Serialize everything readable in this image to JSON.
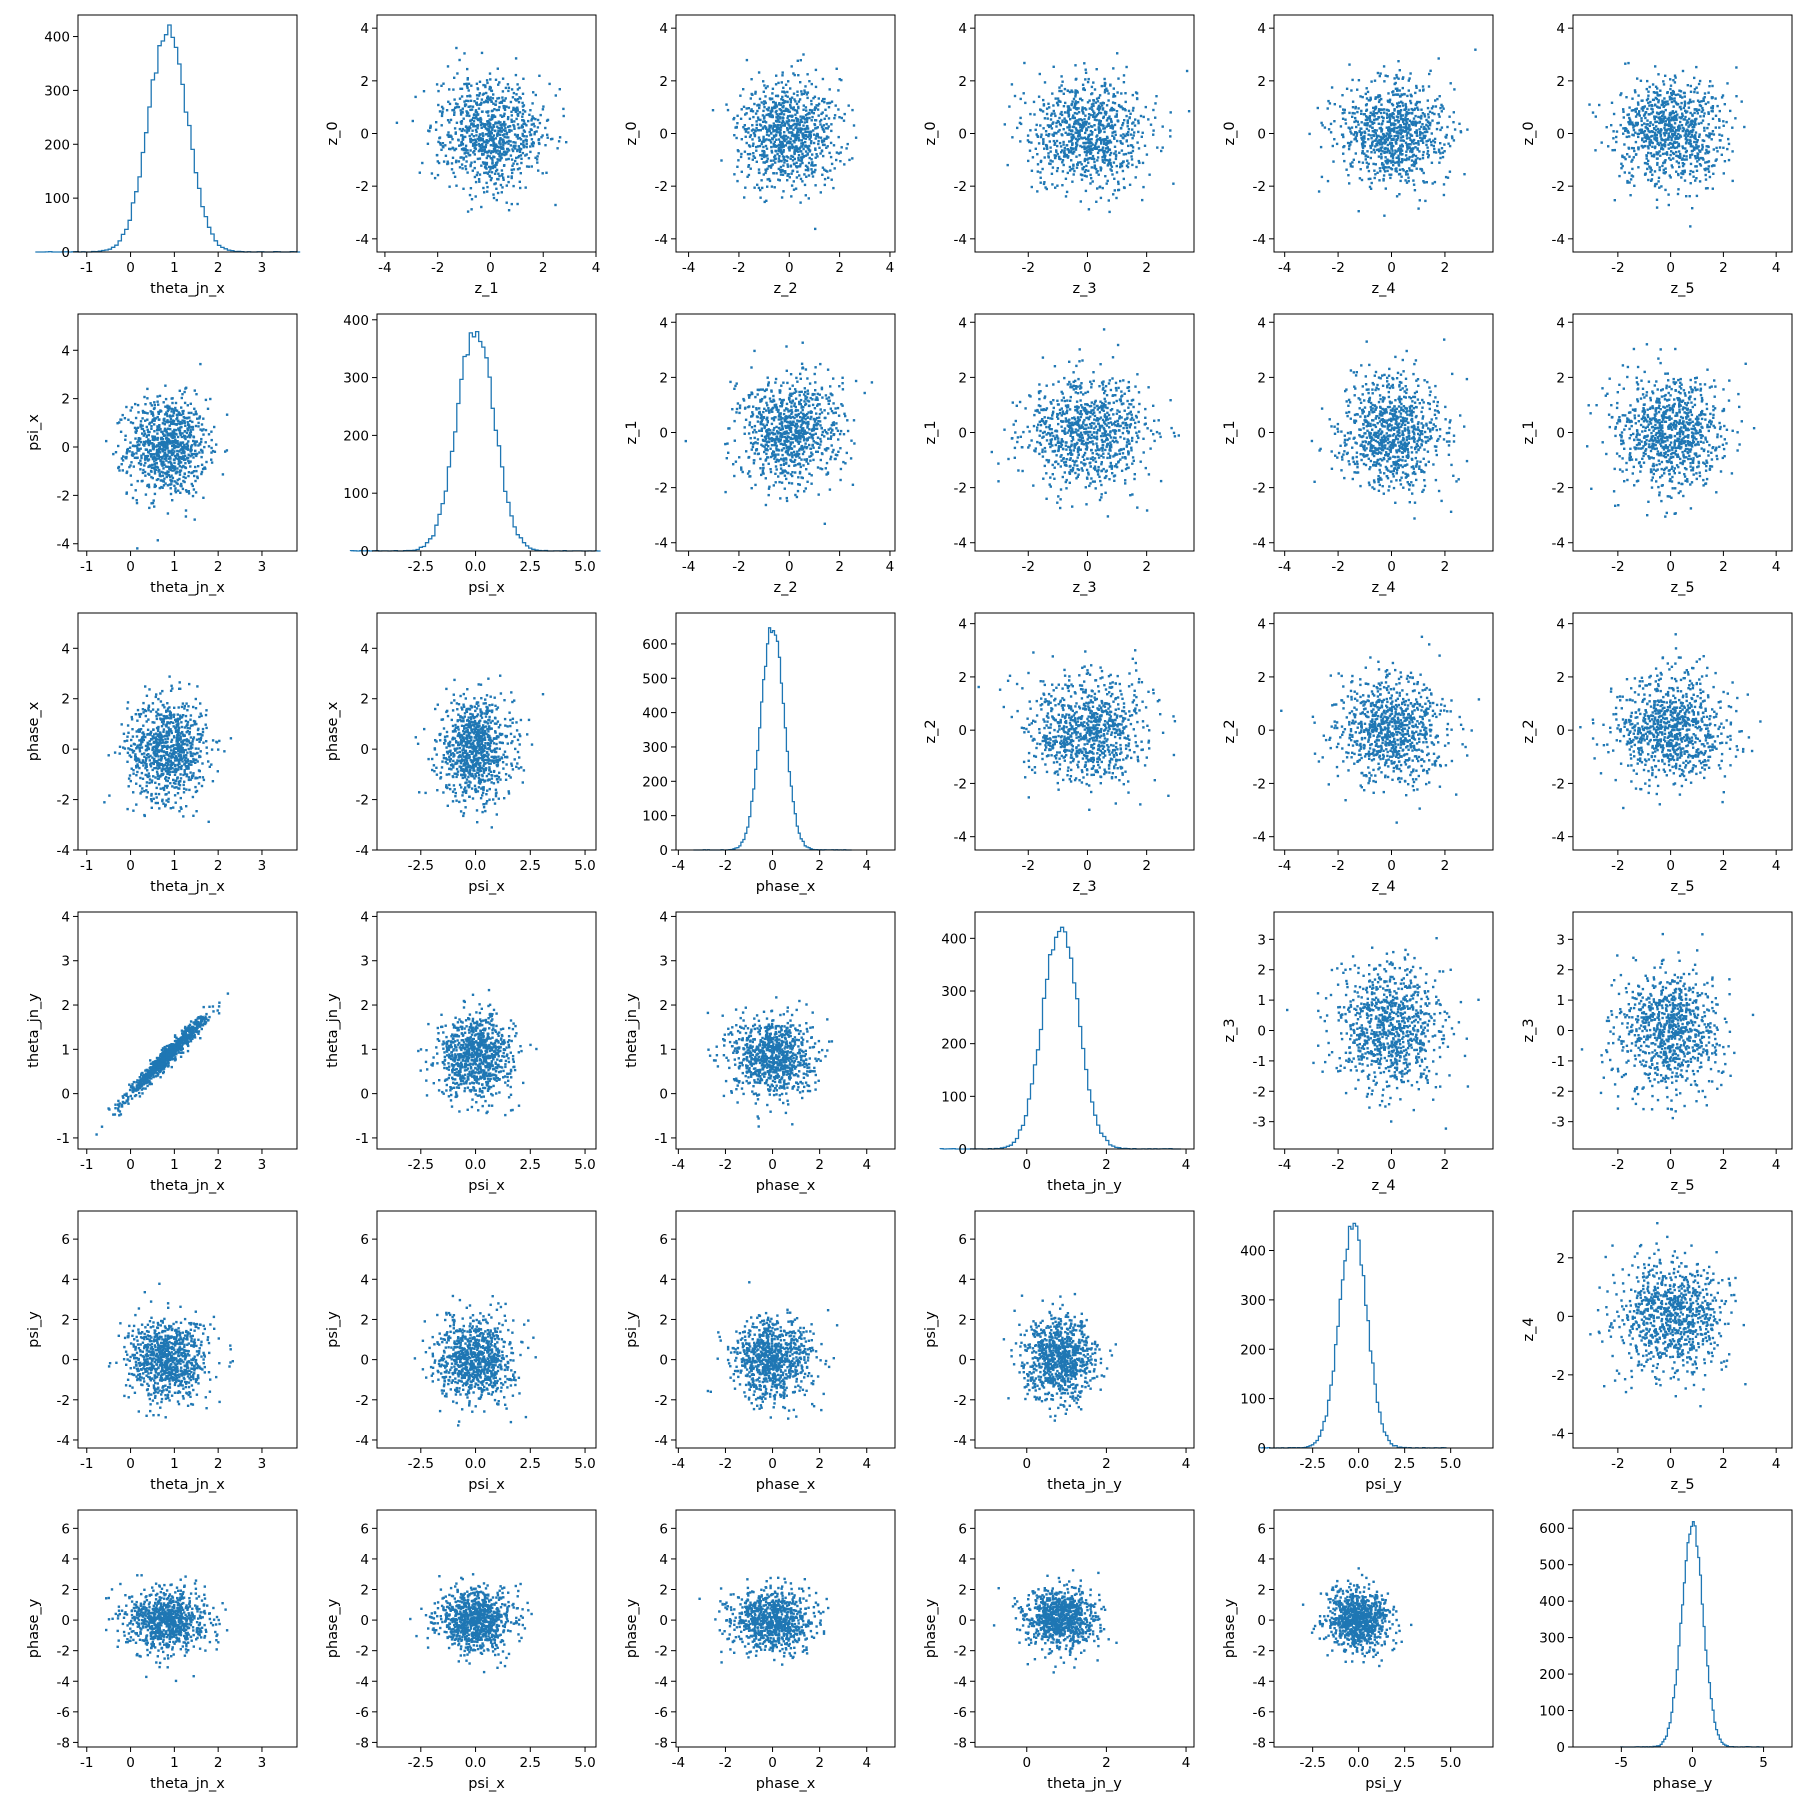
{
  "chart_data": {
    "type": "scatter",
    "layout": "corner-plot",
    "point_color": "#1f77b4",
    "grid": false,
    "rows": [
      {
        "y": "z_0",
        "x": [
          "z_1",
          "z_2",
          "z_3",
          "z_4",
          "z_5"
        ]
      },
      {
        "y": "z_1",
        "x": [
          "z_2",
          "z_3",
          "z_4",
          "z_5"
        ]
      },
      {
        "y": "z_2",
        "x": [
          "z_3",
          "z_4",
          "z_5"
        ]
      },
      {
        "y": "z_3",
        "x": [
          "z_4",
          "z_5"
        ]
      },
      {
        "y": "z_4",
        "x": [
          "z_5"
        ]
      }
    ],
    "lower": [
      {
        "y": "psi_x",
        "x": [
          "theta_jn_x"
        ]
      },
      {
        "y": "phase_x",
        "x": [
          "theta_jn_x",
          "psi_x"
        ]
      },
      {
        "y": "theta_jn_y",
        "x": [
          "theta_jn_x",
          "psi_x",
          "phase_x"
        ]
      },
      {
        "y": "psi_y",
        "x": [
          "theta_jn_x",
          "psi_x",
          "phase_x",
          "theta_jn_y"
        ]
      },
      {
        "y": "phase_y",
        "x": [
          "theta_jn_x",
          "psi_x",
          "phase_x",
          "theta_jn_y",
          "psi_y"
        ]
      }
    ],
    "histograms": [
      {
        "variable": "theta_jn_x",
        "type": "step-histogram",
        "peak": 410,
        "center": 0.85,
        "sd": 0.45,
        "xticks": [
          "-1",
          "0",
          "1",
          "2",
          "3"
        ],
        "yticks": [
          "0",
          "100",
          "200",
          "300",
          "400"
        ],
        "xlim": [
          -1.2,
          3.8
        ],
        "ylim": [
          0,
          440
        ]
      },
      {
        "variable": "psi_x",
        "type": "step-histogram",
        "peak": 385,
        "center": 0.0,
        "sd": 0.85,
        "xticks": [
          "-2.5",
          "0.0",
          "2.5",
          "5.0"
        ],
        "yticks": [
          "0",
          "100",
          "200",
          "300",
          "400"
        ],
        "xlim": [
          -4.5,
          5.5
        ],
        "ylim": [
          0,
          410
        ]
      },
      {
        "variable": "phase_x",
        "type": "step-histogram",
        "peak": 650,
        "center": 0.0,
        "sd": 0.5,
        "xticks": [
          "-4",
          "-2",
          "0",
          "2",
          "4"
        ],
        "yticks": [
          "0",
          "100",
          "200",
          "300",
          "400",
          "500",
          "600"
        ],
        "xlim": [
          -4.1,
          5.2
        ],
        "ylim": [
          0,
          690
        ]
      },
      {
        "variable": "theta_jn_y",
        "type": "step-histogram",
        "peak": 425,
        "center": 0.85,
        "sd": 0.45,
        "xticks": [
          "0",
          "2",
          "4"
        ],
        "yticks": [
          "0",
          "100",
          "200",
          "300",
          "400"
        ],
        "xlim": [
          -1.3,
          4.2
        ],
        "ylim": [
          0,
          450
        ]
      },
      {
        "variable": "psi_y",
        "type": "step-histogram",
        "peak": 455,
        "center": -0.3,
        "sd": 0.75,
        "xticks": [
          "-2.5",
          "0.0",
          "2.5",
          "5.0"
        ],
        "yticks": [
          "0",
          "100",
          "200",
          "300",
          "400"
        ],
        "xlim": [
          -4.6,
          7.3
        ],
        "ylim": [
          0,
          480
        ]
      },
      {
        "variable": "phase_y",
        "type": "step-histogram",
        "peak": 610,
        "center": 0.0,
        "sd": 0.75,
        "xticks": [
          "-5",
          "0",
          "5"
        ],
        "yticks": [
          "0",
          "100",
          "200",
          "300",
          "400",
          "500",
          "600"
        ],
        "xlim": [
          -8.4,
          7.0
        ],
        "ylim": [
          0,
          650
        ]
      }
    ],
    "axes": {
      "theta_jn_x": {
        "lim": [
          -1.2,
          3.8
        ],
        "ticks": [
          "-1",
          "0",
          "1",
          "2",
          "3"
        ]
      },
      "psi_x": {
        "lim": [
          -4.5,
          5.5
        ],
        "ticks": [
          "-2.5",
          "0.0",
          "2.5",
          "5.0"
        ]
      },
      "phase_x": {
        "lim": [
          -4.1,
          5.2
        ],
        "ticks": [
          "-4",
          "-2",
          "0",
          "2",
          "4"
        ]
      },
      "theta_jn_y": {
        "lim": [
          -1.3,
          4.2
        ],
        "ticks": [
          "0",
          "2",
          "4"
        ]
      },
      "psi_y": {
        "lim": [
          -4.6,
          7.3
        ],
        "ticks": [
          "-2.5",
          "0.0",
          "2.5",
          "5.0"
        ]
      },
      "z_1": {
        "lim": [
          -4.3,
          4.0
        ],
        "ticks": [
          "-4",
          "-2",
          "0",
          "2",
          "4"
        ]
      },
      "z_2": {
        "lim": [
          -4.5,
          4.2
        ],
        "ticks": [
          "-4",
          "-2",
          "0",
          "2",
          "4"
        ]
      },
      "z_3": {
        "lim": [
          -3.8,
          3.6
        ],
        "ticks": [
          "-2",
          "0",
          "2"
        ]
      },
      "z_4": {
        "lim": [
          -4.4,
          3.8
        ],
        "ticks": [
          "-4",
          "-2",
          "0",
          "2"
        ]
      },
      "z_5": {
        "lim": [
          -3.7,
          4.6
        ],
        "ticks": [
          "-2",
          "0",
          "2",
          "4"
        ]
      }
    },
    "yaxes": {
      "z_0": {
        "lim": [
          -4.5,
          4.5
        ],
        "ticks": [
          "-4",
          "-2",
          "0",
          "2",
          "4"
        ]
      },
      "z_1": {
        "lim": [
          -4.3,
          4.3
        ],
        "ticks": [
          "-4",
          "-2",
          "0",
          "2",
          "4"
        ]
      },
      "z_2": {
        "lim": [
          -4.5,
          4.4
        ],
        "ticks": [
          "-4",
          "-2",
          "0",
          "2",
          "4"
        ]
      },
      "z_3": {
        "lim": [
          -3.9,
          3.9
        ],
        "ticks": [
          "-3",
          "-2",
          "-1",
          "0",
          "1",
          "2",
          "3"
        ]
      },
      "z_4": {
        "lim": [
          -4.5,
          3.6
        ],
        "ticks": [
          "-4",
          "-2",
          "0",
          "2"
        ]
      },
      "psi_x": {
        "lim": [
          -4.3,
          5.5
        ],
        "ticks": [
          "-4",
          "-2",
          "0",
          "2",
          "4"
        ]
      },
      "phase_x": {
        "lim": [
          -4.0,
          5.4
        ],
        "ticks": [
          "-4",
          "-2",
          "0",
          "2",
          "4"
        ]
      },
      "theta_jn_y": {
        "lim": [
          -1.25,
          4.1
        ],
        "ticks": [
          "-1",
          "0",
          "1",
          "2",
          "3",
          "4"
        ]
      },
      "psi_y": {
        "lim": [
          -4.4,
          7.4
        ],
        "ticks": [
          "-4",
          "-2",
          "0",
          "2",
          "4",
          "6"
        ]
      },
      "phase_y": {
        "lim": [
          -8.3,
          7.2
        ],
        "ticks": [
          "-8",
          "-6",
          "-4",
          "-2",
          "0",
          "2",
          "4",
          "6"
        ]
      }
    }
  }
}
